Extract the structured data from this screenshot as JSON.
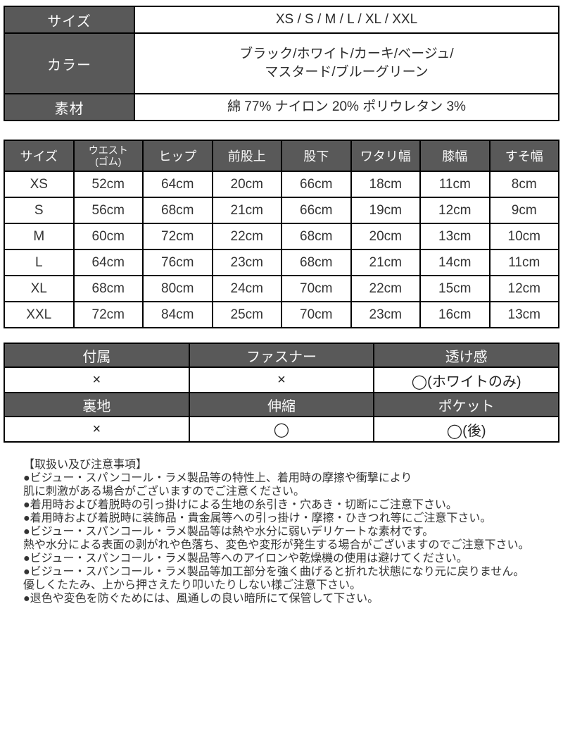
{
  "colors": {
    "header_bg": "#595959",
    "header_text": "#fafafa",
    "cell_text": "#2b2b2b",
    "border": "#000000",
    "page_bg": "#ffffff"
  },
  "spec_table": {
    "rows": [
      {
        "label": "サイズ",
        "value": "XS / S / M / L / XL / XXL"
      },
      {
        "label": "カラー",
        "value": "ブラック/ホワイト/カーキ/ベージュ/\nマスタード/ブルーグリーン"
      },
      {
        "label": "素材",
        "value": "綿 77% ナイロン 20% ポリウレタン 3%"
      }
    ]
  },
  "size_chart": {
    "type": "table",
    "headers": [
      "サイズ",
      "ウエスト\n(ゴム)",
      "ヒップ",
      "前股上",
      "股下",
      "ワタリ幅",
      "膝幅",
      "すそ幅"
    ],
    "rows": [
      [
        "XS",
        "52cm",
        "64cm",
        "20cm",
        "66cm",
        "18cm",
        "11cm",
        "8cm"
      ],
      [
        "S",
        "56cm",
        "68cm",
        "21cm",
        "66cm",
        "19cm",
        "12cm",
        "9cm"
      ],
      [
        "M",
        "60cm",
        "72cm",
        "22cm",
        "68cm",
        "20cm",
        "13cm",
        "10cm"
      ],
      [
        "L",
        "64cm",
        "76cm",
        "23cm",
        "68cm",
        "21cm",
        "14cm",
        "11cm"
      ],
      [
        "XL",
        "68cm",
        "80cm",
        "24cm",
        "70cm",
        "22cm",
        "15cm",
        "12cm"
      ],
      [
        "XXL",
        "72cm",
        "84cm",
        "25cm",
        "70cm",
        "23cm",
        "16cm",
        "13cm"
      ]
    ]
  },
  "features": {
    "groups": [
      {
        "headers": [
          "付属",
          "ファスナー",
          "透け感"
        ],
        "values": [
          "×",
          "×",
          "◯(ホワイトのみ)"
        ]
      },
      {
        "headers": [
          "裏地",
          "伸縮",
          "ポケット"
        ],
        "values": [
          "×",
          "◯",
          "◯(後)"
        ]
      }
    ]
  },
  "care_notes": {
    "title": "【取扱い及び注意事項】",
    "lines": [
      "●ビジュー・スパンコール・ラメ製品等の特性上、着用時の摩擦や衝撃により",
      "肌に刺激がある場合がございますのでご注意ください。",
      "●着用時および着脱時の引っ掛けによる生地の糸引き・穴あき・切断にご注意下さい。",
      "●着用時および着脱時に装飾品・貴金属等への引っ掛け・摩擦・ひきつれ等にご注意下さい。",
      "●ビジュー・スパンコール・ラメ製品等は熱や水分に弱いデリケートな素材です。",
      "熱や水分による表面の剥がれや色落ち、変色や変形が発生する場合がございますのでご注意下さい。",
      "●ビジュー・スパンコール・ラメ製品等へのアイロンや乾燥機の使用は避けてください。",
      "●ビジュー・スパンコール・ラメ製品等加工部分を強く曲げると折れた状態になり元に戻りません。",
      "優しくたたみ、上から押さえたり叩いたりしない様ご注意下さい。",
      "●退色や変色を防ぐためには、風通しの良い暗所にて保管して下さい。"
    ]
  }
}
